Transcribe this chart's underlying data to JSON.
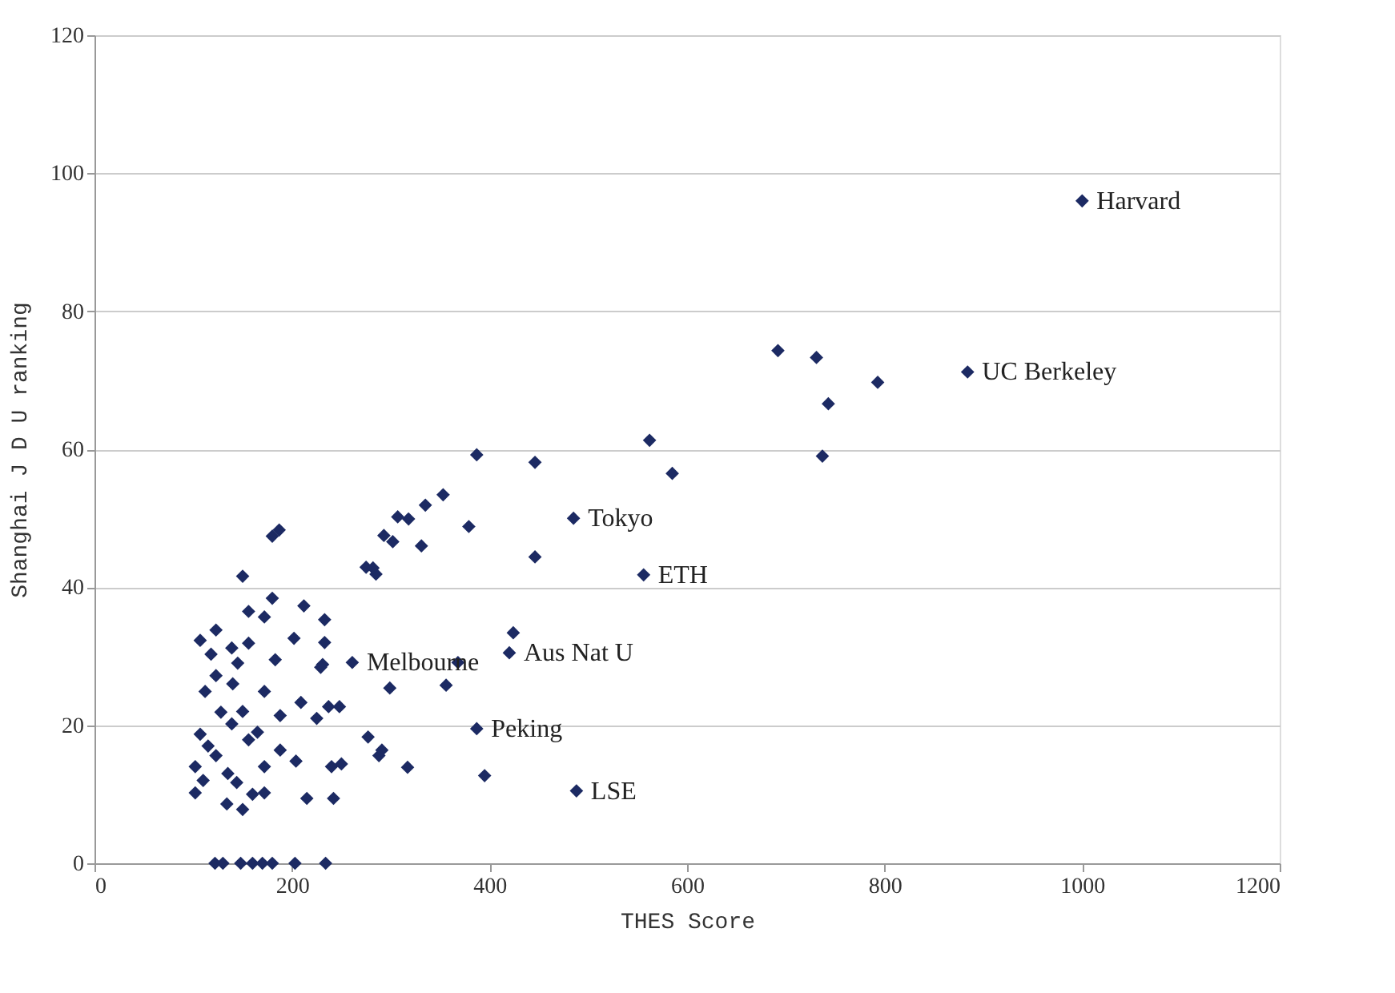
{
  "chart_data": {
    "type": "scatter",
    "xlabel": "THES Score",
    "ylabel": "Shanghai J D U ranking",
    "xlim": [
      0,
      1200
    ],
    "xticks": [
      0,
      200,
      400,
      600,
      800,
      1000,
      1200
    ],
    "ylim": [
      0,
      120
    ],
    "yticks": [
      0,
      20,
      40,
      60,
      80,
      100,
      120
    ],
    "grid": "y",
    "marker": "diamond",
    "series": [
      {
        "color": "#1c2a63",
        "x": [
          122,
          130,
          148,
          160,
          170,
          180,
          203,
          234,
          562,
          585,
          387,
          446,
          353,
          335,
          318,
          307,
          379,
          293,
          302,
          331,
          485,
          446,
          556,
          275,
          285,
          282,
          233,
          233,
          231,
          261,
          368,
          424,
          420,
          299,
          356,
          237,
          248,
          387,
          277,
          288,
          291,
          317,
          240,
          250,
          242,
          395,
          488,
          1000,
          692,
          731,
          884,
          793,
          743,
          737,
          180,
          187,
          150,
          180,
          156,
          212,
          172,
          123,
          107,
          202,
          156,
          139,
          183,
          229,
          123,
          112,
          172,
          209,
          188,
          225,
          128,
          107,
          156,
          188,
          123,
          102,
          172,
          204,
          144,
          172,
          102,
          215,
          134,
          150,
          118,
          139,
          140,
          150,
          115,
          135,
          165,
          145,
          110,
          160
        ],
        "values": [
          0,
          0,
          0,
          0,
          0,
          0,
          0,
          0,
          61.3,
          56.5,
          59.2,
          58.1,
          53.4,
          51.9,
          49.9,
          50.2,
          48.8,
          47.5,
          46.6,
          46,
          50,
          44.4,
          41.8,
          42.9,
          41.9,
          42.8,
          35.3,
          32,
          28.8,
          29.1,
          29.1,
          33.4,
          30.5,
          25.4,
          25.8,
          22.7,
          22.7,
          19.5,
          18.3,
          15.6,
          16.4,
          13.9,
          14,
          14.4,
          9.4,
          12.7,
          10.5,
          96,
          74.3,
          73.3,
          71.2,
          69.7,
          66.6,
          59,
          47.4,
          48.3,
          41.6,
          38.4,
          36.5,
          37.3,
          35.7,
          33.8,
          32.3,
          32.6,
          31.9,
          31.2,
          29.5,
          28.4,
          27.2,
          24.9,
          24.9,
          23.3,
          21.4,
          21,
          21.9,
          18.7,
          17.9,
          16.4,
          15.6,
          14,
          14,
          14.8,
          11.7,
          10.2,
          10.2,
          9.4,
          8.6,
          7.8,
          30.3,
          20.2,
          26,
          22,
          17,
          13,
          19,
          29,
          12,
          10
        ]
      }
    ],
    "annotations": [
      {
        "text": "Harvard",
        "x": 1000,
        "y": 96
      },
      {
        "text": "UC Berkeley",
        "x": 884,
        "y": 71.2
      },
      {
        "text": "Tokyo",
        "x": 485,
        "y": 50
      },
      {
        "text": "ETH",
        "x": 556,
        "y": 41.8
      },
      {
        "text": "Melbourne",
        "x": 261,
        "y": 29.1
      },
      {
        "text": "Aus Nat U",
        "x": 420,
        "y": 30.5
      },
      {
        "text": "Peking",
        "x": 387,
        "y": 19.5
      },
      {
        "text": "LSE",
        "x": 488,
        "y": 10.5
      }
    ]
  }
}
